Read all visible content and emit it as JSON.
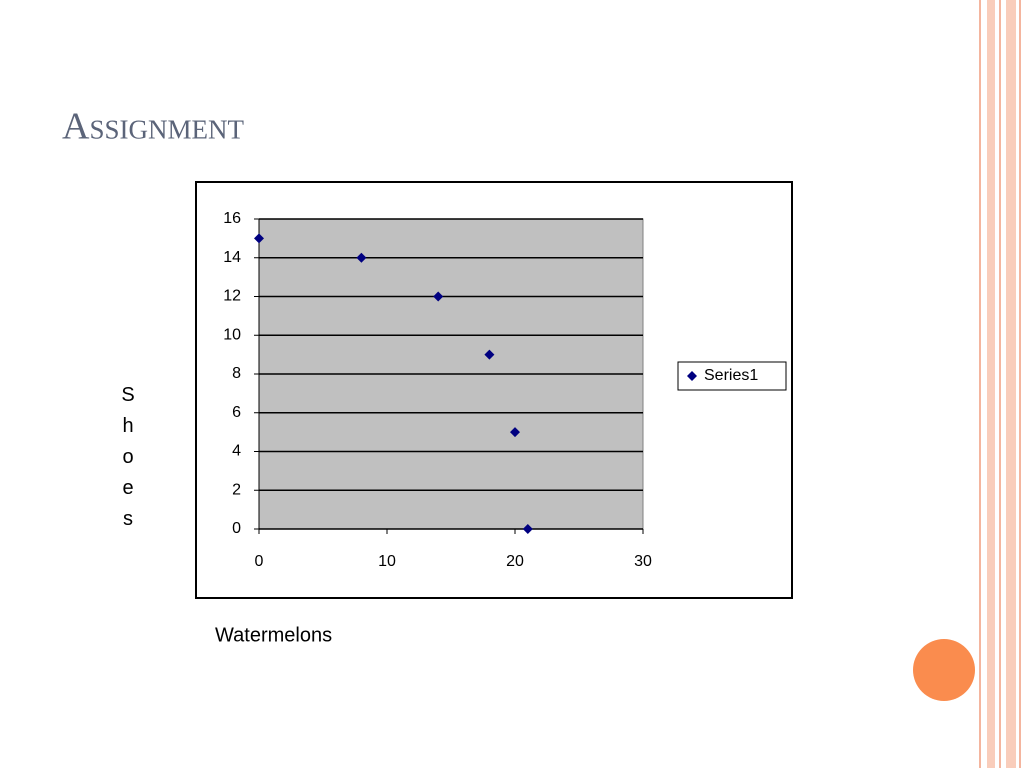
{
  "chart_data": {
    "type": "scatter",
    "title": "Assignment",
    "x_label": "Watermelons",
    "y_label": "Shoes",
    "series": [
      {
        "name": "Series1",
        "color": "#000080",
        "x": [
          0,
          8,
          14,
          18,
          20,
          21
        ],
        "values": [
          15,
          14,
          12,
          9,
          5,
          0
        ]
      }
    ],
    "xlim": [
      0,
      30
    ],
    "xticks": [
      0,
      10,
      20,
      30
    ],
    "ylim": [
      0,
      16
    ],
    "yticks": [
      0,
      2,
      4,
      6,
      8,
      10,
      12,
      14,
      16
    ],
    "grid": true,
    "legend": "right"
  }
}
